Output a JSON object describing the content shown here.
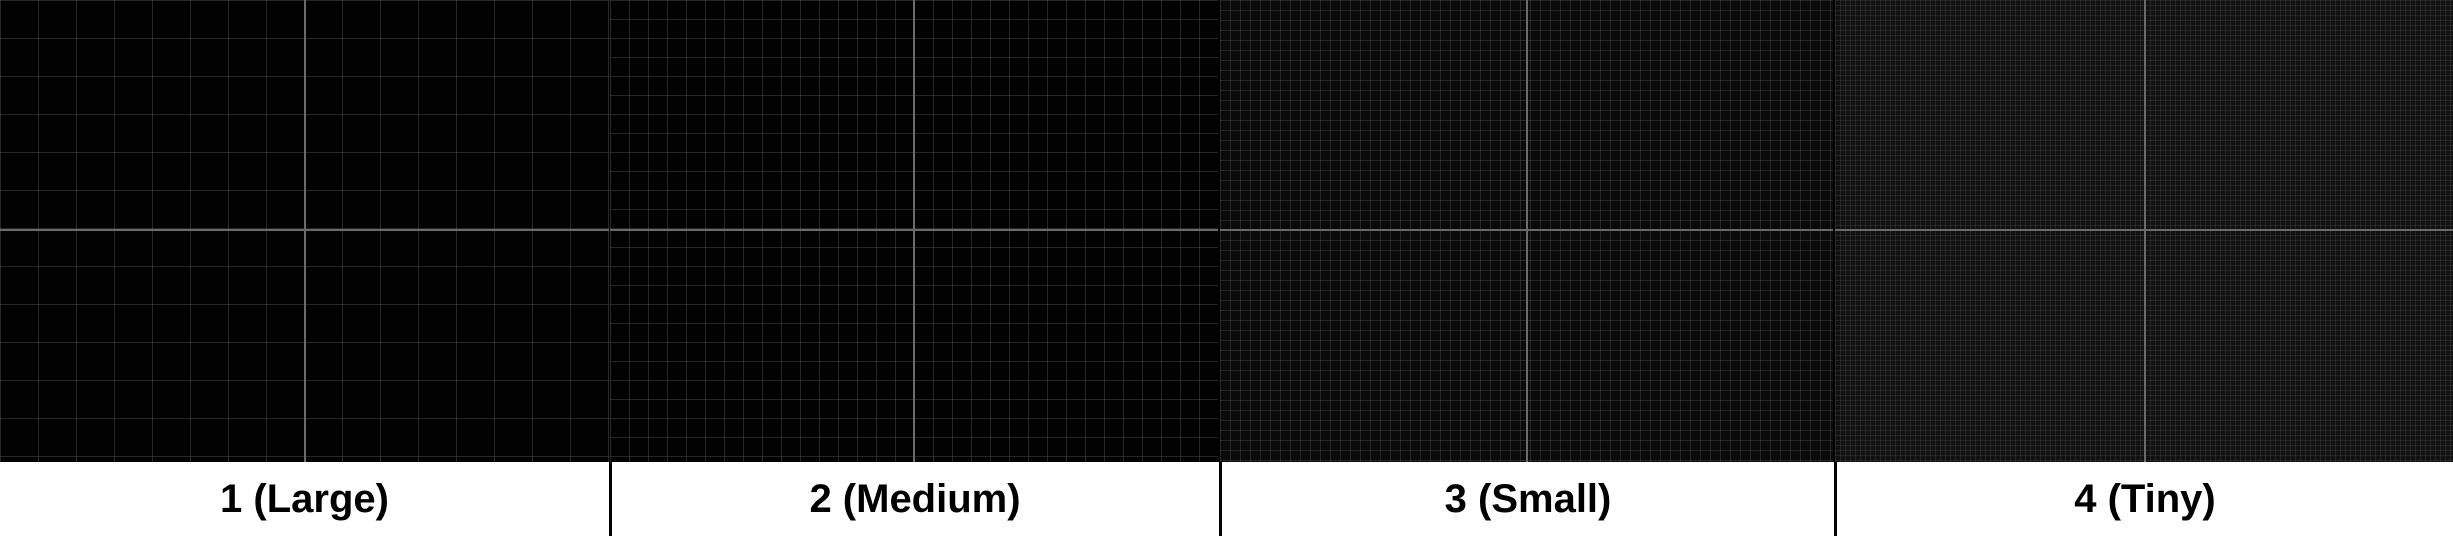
{
  "panels": [
    {
      "label": "1 (Large)",
      "grid_size": "Large"
    },
    {
      "label": "2 (Medium)",
      "grid_size": "Medium"
    },
    {
      "label": "3 (Small)",
      "grid_size": "Small"
    },
    {
      "label": "4 (Tiny)",
      "grid_size": "Tiny"
    }
  ],
  "colors": {
    "background": "#020202",
    "grid_line": "#3a3a3a",
    "axis_line": "#6a6a6a",
    "label_text": "#000000",
    "label_background": "#ffffff"
  }
}
